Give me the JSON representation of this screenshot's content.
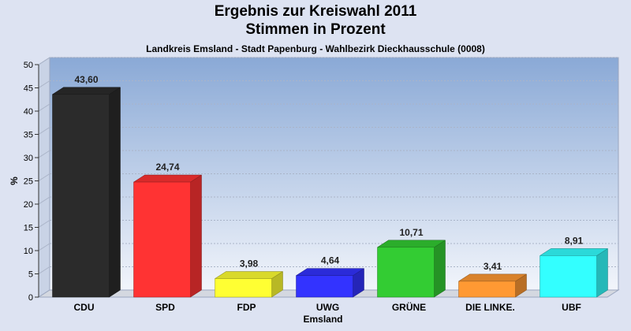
{
  "chart_data": {
    "type": "bar",
    "title": "Ergebnis zur Kreiswahl 2011",
    "subtitle_line2": "Stimmen in Prozent",
    "subtitle": "Landkreis Emsland - Stadt Papenburg - Wahlbezirk Dieckhausschule (0008)",
    "xlabel": "Emsland",
    "ylabel": "%",
    "ylim": [
      0,
      50
    ],
    "yticks": [
      0,
      5,
      10,
      15,
      20,
      25,
      30,
      35,
      40,
      45,
      50
    ],
    "categories": [
      "CDU",
      "SPD",
      "FDP",
      "UWG",
      "GRÜNE",
      "DIE LINKE.",
      "UBF"
    ],
    "values": [
      43.6,
      24.74,
      3.98,
      4.64,
      10.71,
      3.41,
      8.91
    ],
    "value_labels": [
      "43,60",
      "24,74",
      "3,98",
      "4,64",
      "10,71",
      "3,41",
      "8,91"
    ],
    "colors": [
      "#2b2b2b",
      "#ff3333",
      "#ffff33",
      "#3333ff",
      "#33cc33",
      "#ff9933",
      "#33ffff"
    ],
    "grid": true,
    "legend": "none"
  }
}
